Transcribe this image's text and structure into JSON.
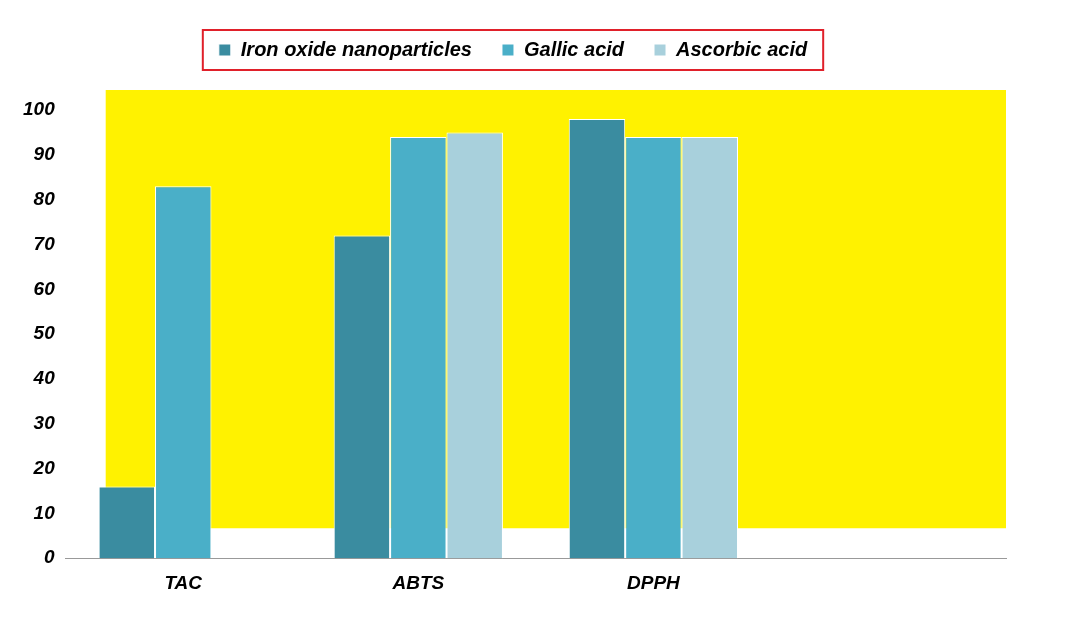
{
  "chart_data": {
    "type": "bar",
    "categories": [
      "TAC",
      "ABTS",
      "DPPH",
      null
    ],
    "series": [
      {
        "name": "Iron oxide nanoparticles",
        "color": "#3a8ca0",
        "values": [
          16,
          72,
          98,
          null
        ]
      },
      {
        "name": "Gallic acid",
        "color": "#4aafc8",
        "values": [
          83,
          94,
          94,
          null
        ]
      },
      {
        "name": "Ascorbic acid",
        "color": "#a8d0dc",
        "values": [
          0,
          95,
          94,
          null
        ]
      }
    ],
    "ylim": [
      0,
      100
    ],
    "yticks": [
      0,
      10,
      20,
      30,
      40,
      50,
      60,
      70,
      80,
      90,
      100
    ],
    "grid": false,
    "legend": "top"
  }
}
